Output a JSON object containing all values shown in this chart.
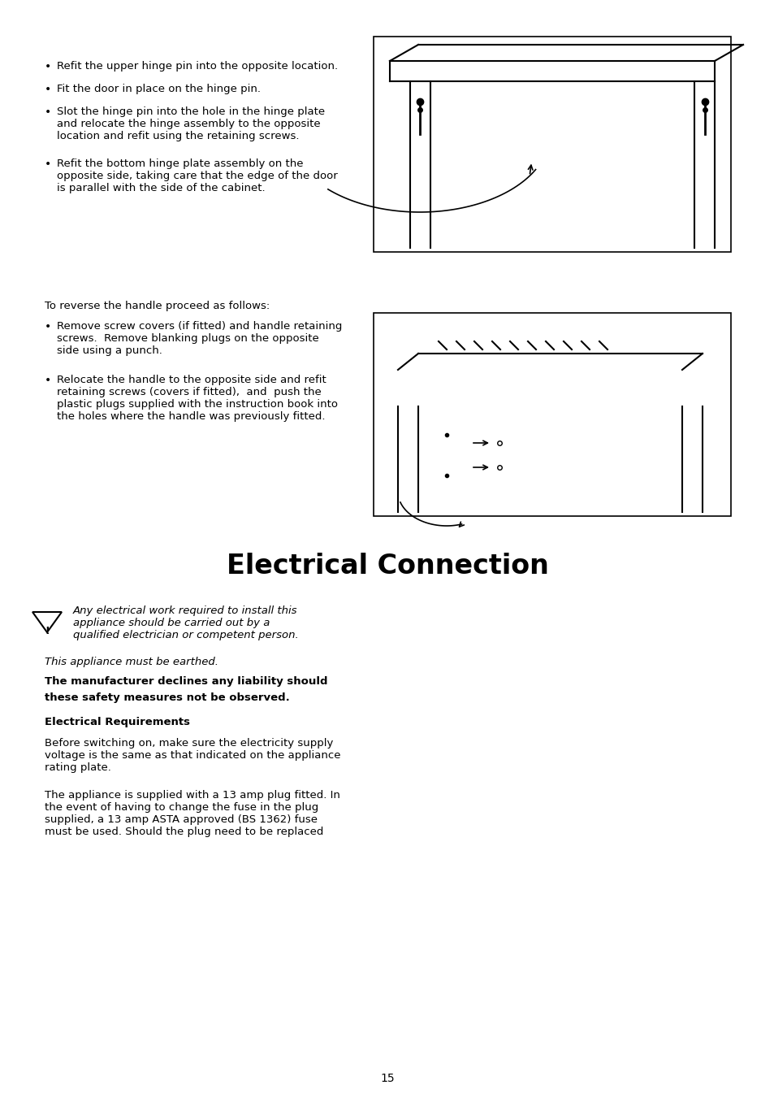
{
  "bg_color": "#ffffff",
  "page_number": "15",
  "section_title": "Electrical Connection",
  "bullet_points_top": [
    "Refit the upper hinge pin into the opposite location.",
    "Fit the door in place on the hinge pin.",
    "Slot the hinge pin into the hole in the hinge plate\nand relocate the hinge assembly to the opposite\nlocation and refit using the retaining screws.",
    "Refit the bottom hinge plate assembly on the\nopposite side, taking care that the edge of the door\nis parallel with the side of the cabinet."
  ],
  "handle_intro": "To reverse the handle proceed as follows:",
  "bullet_points_handle": [
    "Remove screw covers (if fitted) and handle retaining\nscrews.  Remove blanking plugs on the opposite\nside using a punch.",
    "Relocate the handle to the opposite side and refit\nretaining screws (covers if fitted),  and  push the\nplastic plugs supplied with the instruction book into\nthe holes where the handle was previously fitted."
  ],
  "warning_text": "Any electrical work required to install this\nappliance should be carried out by a\nqualified electrician or competent person.",
  "italic_line": "This appliance must be earthed.",
  "bold_line1": "The manufacturer declines any liability should",
  "bold_line2": "these safety measures not be observed.",
  "subheading": "Electrical Requirements",
  "para1": "Before switching on, make sure the electricity supply\nvoltage is the same as that indicated on the appliance\nrating plate.",
  "para2": "The appliance is supplied with a 13 amp plug fitted. In\nthe event of having to change the fuse in the plug\nsupplied, a 13 amp ASTA approved (BS 1362) fuse\nmust be used. Should the plug need to be replaced"
}
